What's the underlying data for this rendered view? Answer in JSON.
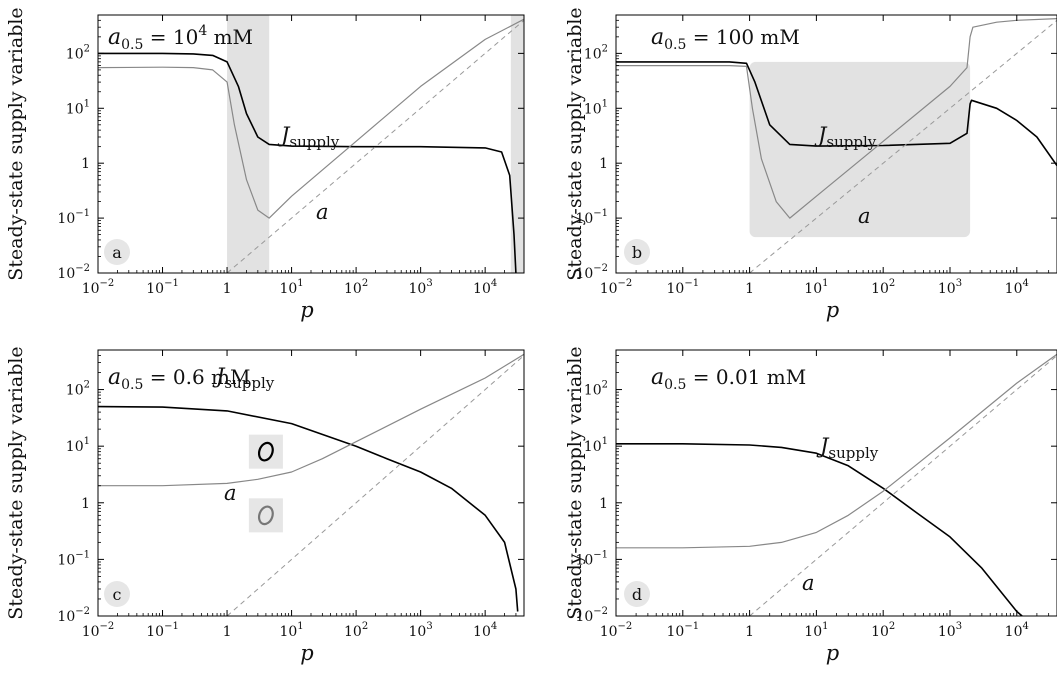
{
  "chart_data": [
    {
      "type": "line",
      "panel_label": "a",
      "title": "a0.5 = 10^4 mM",
      "title_parts": {
        "base": "a",
        "sub": "0.5",
        "eq": " = 10",
        "sup": "4",
        "unit": " mM"
      },
      "xlabel": "p",
      "ylabel": "Steady-state supply variable",
      "xscale": "log",
      "yscale": "log",
      "xlim": [
        0.01,
        40000
      ],
      "ylim": [
        0.01,
        500
      ],
      "shaded_x": [
        [
          1,
          4.5
        ],
        [
          25000,
          40000
        ]
      ],
      "series": [
        {
          "name": "J_supply",
          "color": "#000000",
          "x": [
            0.01,
            0.1,
            0.3,
            0.6,
            1.0,
            1.5,
            2.0,
            3.0,
            4.5,
            10,
            100,
            1000,
            10000,
            18000,
            24000,
            28000,
            30000
          ],
          "y": [
            100,
            100,
            98,
            92,
            70,
            25,
            8,
            3,
            2.2,
            2.05,
            2.0,
            2.0,
            1.9,
            1.6,
            0.6,
            0.05,
            0.01
          ]
        },
        {
          "name": "a",
          "color": "#888888",
          "x": [
            0.01,
            0.1,
            0.3,
            0.6,
            1.0,
            1.3,
            2.0,
            3.0,
            4.5,
            10,
            100,
            1000,
            10000,
            40000
          ],
          "y": [
            55,
            56,
            55,
            50,
            30,
            5,
            0.5,
            0.14,
            0.1,
            0.25,
            2.5,
            25,
            180,
            420
          ]
        },
        {
          "name": "",
          "style": "dashed",
          "color": "#999999",
          "x": [
            1,
            40000
          ],
          "y": [
            0.01,
            400
          ]
        }
      ]
    },
    {
      "type": "line",
      "panel_label": "b",
      "title": "a0.5 = 100 mM",
      "title_parts": {
        "base": "a",
        "sub": "0.5",
        "eq": " = 100",
        "sup": "",
        "unit": " mM"
      },
      "xlabel": "p",
      "ylabel": "Steady-state supply variable",
      "xscale": "log",
      "yscale": "log",
      "xlim": [
        0.01,
        40000
      ],
      "ylim": [
        0.01,
        500
      ],
      "shaded_rect": {
        "x": [
          1,
          2000
        ],
        "y": [
          0.045,
          70
        ]
      },
      "series": [
        {
          "name": "J_supply",
          "color": "#000000",
          "x": [
            0.01,
            0.1,
            0.5,
            0.9,
            1.2,
            2.0,
            4.0,
            10,
            100,
            1000,
            1800,
            2000,
            2100,
            5000,
            10000,
            20000,
            40000
          ],
          "y": [
            70,
            70,
            70,
            66,
            30,
            5,
            2.2,
            2.05,
            2.1,
            2.3,
            3.5,
            12,
            14,
            10,
            6,
            3,
            0.9
          ]
        },
        {
          "name": "a",
          "color": "#888888",
          "x": [
            0.01,
            0.1,
            0.5,
            0.9,
            1.1,
            1.5,
            2.5,
            4.0,
            10,
            100,
            1000,
            1800,
            2000,
            2200,
            5000,
            10000,
            40000
          ],
          "y": [
            60,
            60,
            60,
            58,
            10,
            1.2,
            0.2,
            0.1,
            0.25,
            2.5,
            25,
            55,
            200,
            300,
            370,
            400,
            430
          ]
        },
        {
          "name": "",
          "style": "dashed",
          "color": "#999999",
          "x": [
            1,
            40000
          ],
          "y": [
            0.01,
            400
          ]
        }
      ]
    },
    {
      "type": "line",
      "panel_label": "c",
      "title": "a0.5 = 0.6 mM",
      "title_parts": {
        "base": "a",
        "sub": "0.5",
        "eq": " = 0.6",
        "sup": "",
        "unit": " mM"
      },
      "xlabel": "p",
      "ylabel": "Steady-state supply variable",
      "xscale": "log",
      "yscale": "log",
      "xlim": [
        0.01,
        40000
      ],
      "ylim": [
        0.01,
        500
      ],
      "markers": [
        {
          "x": 4,
          "y": 8,
          "color": "#000000"
        },
        {
          "x": 4,
          "y": 0.6,
          "color": "#777777"
        }
      ],
      "series": [
        {
          "name": "J_supply",
          "color": "#000000",
          "x": [
            0.01,
            0.1,
            1,
            10,
            100,
            300,
            1000,
            3000,
            10000,
            20000,
            30000,
            32000
          ],
          "y": [
            50,
            49,
            42,
            25,
            10,
            6,
            3.5,
            1.8,
            0.6,
            0.2,
            0.03,
            0.012
          ]
        },
        {
          "name": "a",
          "color": "#888888",
          "x": [
            0.01,
            0.1,
            1,
            3,
            10,
            30,
            100,
            1000,
            10000,
            40000
          ],
          "y": [
            2.0,
            2.0,
            2.2,
            2.6,
            3.5,
            6,
            12,
            45,
            160,
            420
          ]
        },
        {
          "name": "",
          "style": "dashed",
          "color": "#999999",
          "x": [
            1,
            40000
          ],
          "y": [
            0.01,
            400
          ]
        }
      ]
    },
    {
      "type": "line",
      "panel_label": "d",
      "title": "a0.5 = 0.01 mM",
      "title_parts": {
        "base": "a",
        "sub": "0.5",
        "eq": " = 0.01",
        "sup": "",
        "unit": " mM"
      },
      "xlabel": "p",
      "ylabel": "Steady-state supply variable",
      "xscale": "log",
      "yscale": "log",
      "xlim": [
        0.01,
        40000
      ],
      "ylim": [
        0.01,
        500
      ],
      "series": [
        {
          "name": "J_supply",
          "color": "#000000",
          "x": [
            0.01,
            0.1,
            1,
            3,
            10,
            30,
            100,
            300,
            1000,
            3000,
            10000,
            12000
          ],
          "y": [
            11,
            11,
            10.5,
            9.5,
            7.5,
            4.5,
            1.8,
            0.7,
            0.25,
            0.07,
            0.012,
            0.01
          ]
        },
        {
          "name": "a",
          "color": "#888888",
          "x": [
            0.01,
            0.1,
            1,
            3,
            10,
            30,
            100,
            300,
            1000,
            10000,
            40000
          ],
          "y": [
            0.16,
            0.16,
            0.17,
            0.2,
            0.3,
            0.6,
            1.6,
            4.5,
            14,
            130,
            420
          ]
        },
        {
          "name": "",
          "style": "dashed",
          "color": "#999999",
          "x": [
            1,
            40000
          ],
          "y": [
            0.01,
            400
          ]
        }
      ]
    }
  ],
  "tick_labels": {
    "x": [
      "10",
      "10",
      "1",
      "10",
      "10",
      "10",
      "10"
    ],
    "x_sup": [
      "−2",
      "−1",
      "",
      "1",
      "2",
      "3",
      "4"
    ],
    "y": [
      "10",
      "10",
      "1",
      "10",
      "10"
    ],
    "y_sup": [
      "−2",
      "−1",
      "",
      "1",
      "2"
    ]
  },
  "annotations": {
    "J_label_base": "J",
    "J_label_sub": "supply",
    "a_label": "a"
  },
  "colors": {
    "shade": "#e2e2e2",
    "badge": "#e6e6e6",
    "j_line": "#000000",
    "a_line": "#888888",
    "diag_line": "#999999"
  }
}
